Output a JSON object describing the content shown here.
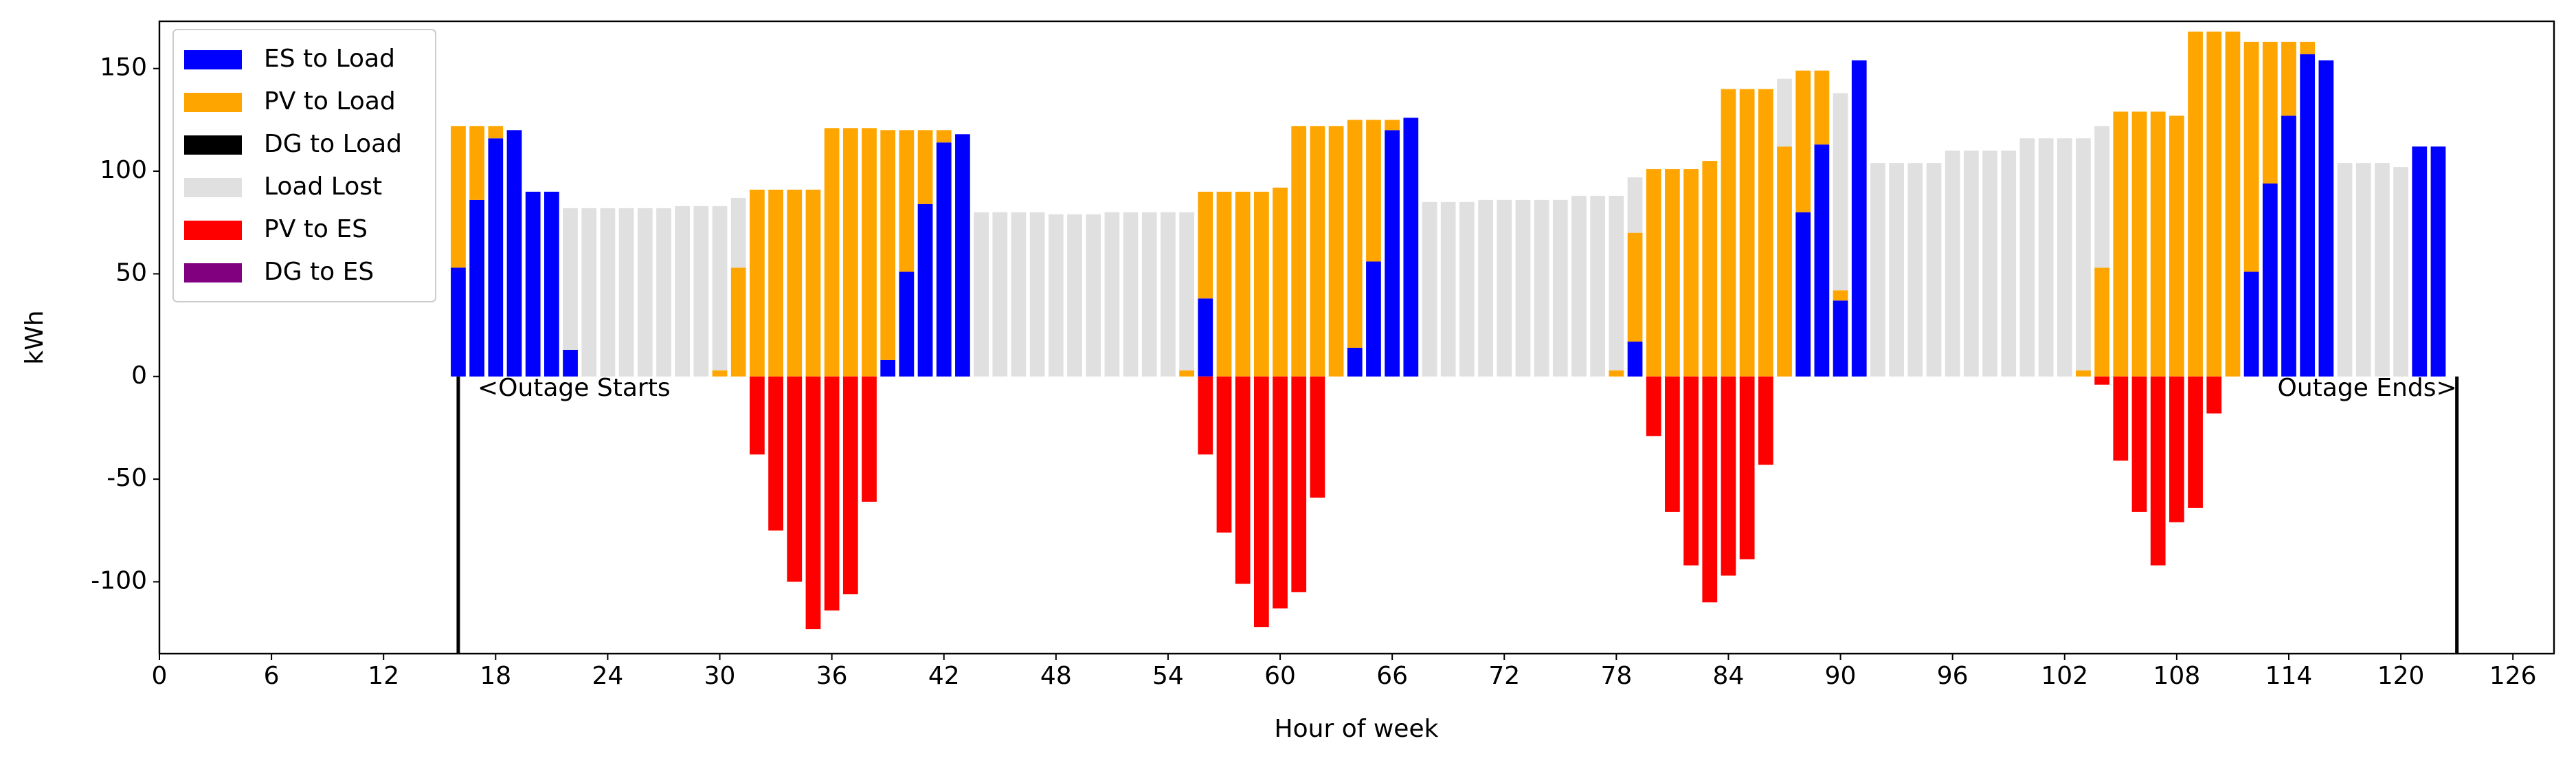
{
  "chart_data": {
    "type": "bar",
    "stacked": true,
    "xlabel": "Hour of week",
    "ylabel": "kWh",
    "xlim": [
      0,
      128.2
    ],
    "ylim": [
      -135,
      173
    ],
    "xticks": [
      0,
      6,
      12,
      18,
      24,
      30,
      36,
      42,
      48,
      54,
      60,
      66,
      72,
      78,
      84,
      90,
      96,
      102,
      108,
      114,
      120,
      126
    ],
    "yticks": [
      -100,
      -50,
      0,
      50,
      100,
      150
    ],
    "grid": false,
    "legend": "upper left",
    "x": [
      16,
      17,
      18,
      19,
      20,
      21,
      22,
      23,
      24,
      25,
      26,
      27,
      28,
      29,
      30,
      31,
      32,
      33,
      34,
      35,
      36,
      37,
      38,
      39,
      40,
      41,
      42,
      43,
      44,
      45,
      46,
      47,
      48,
      49,
      50,
      51,
      52,
      53,
      54,
      55,
      56,
      57,
      58,
      59,
      60,
      61,
      62,
      63,
      64,
      65,
      66,
      67,
      68,
      69,
      70,
      71,
      72,
      73,
      74,
      75,
      76,
      77,
      78,
      79,
      80,
      81,
      82,
      83,
      84,
      85,
      86,
      87,
      88,
      89,
      90,
      91,
      92,
      93,
      94,
      95,
      96,
      97,
      98,
      99,
      100,
      101,
      102,
      103,
      104,
      105,
      106,
      107,
      108,
      109,
      110,
      111,
      112,
      113,
      114,
      115,
      116,
      117,
      118,
      119,
      120,
      121,
      122
    ],
    "series": [
      {
        "name": "ES to Load",
        "color": "#0000ff",
        "values": [
          53,
          86,
          116,
          120,
          90,
          90,
          13,
          0,
          0,
          0,
          0,
          0,
          0,
          0,
          0,
          0,
          0,
          0,
          0,
          0,
          0,
          0,
          0,
          8,
          51,
          84,
          114,
          118,
          0,
          0,
          0,
          0,
          0,
          0,
          0,
          0,
          0,
          0,
          0,
          0,
          38,
          0,
          0,
          0,
          0,
          0,
          0,
          0,
          14,
          56,
          120,
          126,
          0,
          0,
          0,
          0,
          0,
          0,
          0,
          0,
          0,
          0,
          0,
          17,
          0,
          0,
          0,
          0,
          0,
          0,
          0,
          0,
          80,
          113,
          37,
          154,
          0,
          0,
          0,
          0,
          0,
          0,
          0,
          0,
          0,
          0,
          0,
          0,
          0,
          0,
          0,
          0,
          0,
          0,
          0,
          0,
          51,
          94,
          127,
          157,
          154,
          0,
          0,
          0,
          0,
          112,
          112
        ]
      },
      {
        "name": "PV to Load",
        "color": "#ffa500",
        "values": [
          69,
          36,
          6,
          0,
          0,
          0,
          0,
          0,
          0,
          0,
          0,
          0,
          0,
          0,
          3,
          53,
          91,
          91,
          91,
          91,
          121,
          121,
          121,
          112,
          69,
          36,
          6,
          0,
          0,
          0,
          0,
          0,
          0,
          0,
          0,
          0,
          0,
          0,
          0,
          3,
          52,
          90,
          90,
          90,
          92,
          122,
          122,
          122,
          111,
          69,
          5,
          0,
          0,
          0,
          0,
          0,
          0,
          0,
          0,
          0,
          0,
          0,
          3,
          53,
          101,
          101,
          101,
          105,
          140,
          140,
          140,
          112,
          69,
          36,
          5,
          0,
          0,
          0,
          0,
          0,
          0,
          0,
          0,
          0,
          0,
          0,
          0,
          3,
          53,
          129,
          129,
          129,
          127,
          168,
          168,
          168,
          112,
          69,
          36,
          6,
          0,
          0,
          0,
          0,
          0,
          0,
          0
        ]
      },
      {
        "name": "DG to Load",
        "color": "#000000",
        "values": [
          0,
          0,
          0,
          0,
          0,
          0,
          0,
          0,
          0,
          0,
          0,
          0,
          0,
          0,
          0,
          0,
          0,
          0,
          0,
          0,
          0,
          0,
          0,
          0,
          0,
          0,
          0,
          0,
          0,
          0,
          0,
          0,
          0,
          0,
          0,
          0,
          0,
          0,
          0,
          0,
          0,
          0,
          0,
          0,
          0,
          0,
          0,
          0,
          0,
          0,
          0,
          0,
          0,
          0,
          0,
          0,
          0,
          0,
          0,
          0,
          0,
          0,
          0,
          0,
          0,
          0,
          0,
          0,
          0,
          0,
          0,
          0,
          0,
          0,
          0,
          0,
          0,
          0,
          0,
          0,
          0,
          0,
          0,
          0,
          0,
          0,
          0,
          0,
          0,
          0,
          0,
          0,
          0,
          0,
          0,
          0,
          0,
          0,
          0,
          0,
          0,
          0,
          0,
          0,
          0,
          0,
          0
        ]
      },
      {
        "name": "Load Lost",
        "color": "#e0e0e0",
        "values": [
          0,
          0,
          0,
          0,
          0,
          0,
          69,
          82,
          82,
          82,
          82,
          82,
          83,
          83,
          80,
          34,
          0,
          0,
          0,
          0,
          0,
          0,
          0,
          0,
          0,
          0,
          0,
          0,
          80,
          80,
          80,
          80,
          79,
          79,
          79,
          80,
          80,
          80,
          80,
          77,
          0,
          0,
          0,
          0,
          0,
          0,
          0,
          0,
          0,
          0,
          0,
          0,
          85,
          85,
          85,
          86,
          86,
          86,
          86,
          86,
          88,
          88,
          85,
          27,
          0,
          0,
          0,
          0,
          0,
          0,
          0,
          33,
          0,
          0,
          96,
          0,
          104,
          104,
          104,
          104,
          110,
          110,
          110,
          110,
          116,
          116,
          116,
          113,
          69,
          0,
          0,
          0,
          0,
          0,
          0,
          0,
          0,
          0,
          0,
          0,
          0,
          104,
          104,
          104,
          102,
          0,
          0
        ]
      },
      {
        "name": "PV to ES",
        "color": "#ff0000",
        "values": [
          0,
          0,
          0,
          0,
          0,
          0,
          0,
          0,
          0,
          0,
          0,
          0,
          0,
          0,
          0,
          0,
          -38,
          -75,
          -100,
          -123,
          -114,
          -106,
          -61,
          0,
          0,
          0,
          0,
          0,
          0,
          0,
          0,
          0,
          0,
          0,
          0,
          0,
          0,
          0,
          0,
          0,
          -38,
          -76,
          -101,
          -122,
          -113,
          -105,
          -59,
          0,
          0,
          0,
          0,
          0,
          0,
          0,
          0,
          0,
          0,
          0,
          0,
          0,
          0,
          0,
          0,
          0,
          -29,
          -66,
          -92,
          -110,
          -97,
          -89,
          -43,
          0,
          0,
          0,
          0,
          0,
          0,
          0,
          0,
          0,
          0,
          0,
          0,
          0,
          0,
          0,
          0,
          0,
          -4,
          -41,
          -66,
          -92,
          -71,
          -64,
          -18,
          0,
          0,
          0,
          0,
          0,
          0,
          0,
          0,
          0,
          0,
          0,
          0
        ]
      },
      {
        "name": "DG to ES",
        "color": "#800080",
        "values": [
          0,
          0,
          0,
          0,
          0,
          0,
          0,
          0,
          0,
          0,
          0,
          0,
          0,
          0,
          0,
          0,
          0,
          0,
          0,
          0,
          0,
          0,
          0,
          0,
          0,
          0,
          0,
          0,
          0,
          0,
          0,
          0,
          0,
          0,
          0,
          0,
          0,
          0,
          0,
          0,
          0,
          0,
          0,
          0,
          0,
          0,
          0,
          0,
          0,
          0,
          0,
          0,
          0,
          0,
          0,
          0,
          0,
          0,
          0,
          0,
          0,
          0,
          0,
          0,
          0,
          0,
          0,
          0,
          0,
          0,
          0,
          0,
          0,
          0,
          0,
          0,
          0,
          0,
          0,
          0,
          0,
          0,
          0,
          0,
          0,
          0,
          0,
          0,
          0,
          0,
          0,
          0,
          0,
          0,
          0,
          0,
          0,
          0,
          0,
          0,
          0,
          0,
          0,
          0,
          0,
          0,
          0
        ]
      }
    ],
    "annotations": [
      {
        "text": "<Outage Starts",
        "x": 16
      },
      {
        "text": "Outage Ends>",
        "x": 123
      }
    ]
  }
}
